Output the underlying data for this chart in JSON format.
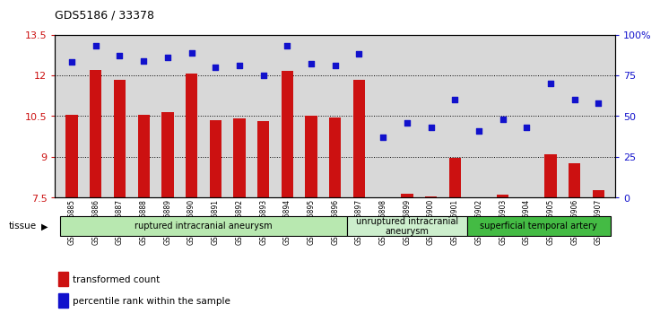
{
  "title": "GDS5186 / 33378",
  "samples": [
    "GSM1306885",
    "GSM1306886",
    "GSM1306887",
    "GSM1306888",
    "GSM1306889",
    "GSM1306890",
    "GSM1306891",
    "GSM1306892",
    "GSM1306893",
    "GSM1306894",
    "GSM1306895",
    "GSM1306896",
    "GSM1306897",
    "GSM1306898",
    "GSM1306899",
    "GSM1306900",
    "GSM1306901",
    "GSM1306902",
    "GSM1306903",
    "GSM1306904",
    "GSM1306905",
    "GSM1306906",
    "GSM1306907"
  ],
  "bar_values": [
    10.55,
    12.2,
    11.85,
    10.55,
    10.65,
    12.05,
    10.35,
    10.4,
    10.3,
    12.15,
    10.5,
    10.45,
    11.85,
    7.52,
    7.65,
    7.55,
    8.95,
    7.52,
    7.62,
    7.52,
    9.1,
    8.75,
    7.78
  ],
  "scatter_values": [
    83,
    93,
    87,
    84,
    86,
    89,
    80,
    81,
    75,
    93,
    82,
    81,
    88,
    37,
    46,
    43,
    60,
    41,
    48,
    43,
    70,
    60,
    58
  ],
  "ylim_left": [
    7.5,
    13.5
  ],
  "ylim_right": [
    0,
    100
  ],
  "yticks_left": [
    7.5,
    9.0,
    10.5,
    12.0,
    13.5
  ],
  "ytick_labels_left": [
    "7.5",
    "9",
    "10.5",
    "12",
    "13.5"
  ],
  "yticks_right": [
    0,
    25,
    50,
    75,
    100
  ],
  "ytick_labels_right": [
    "0",
    "25",
    "50",
    "75",
    "100%"
  ],
  "grid_values": [
    9.0,
    10.5,
    12.0
  ],
  "bar_color": "#cc1111",
  "scatter_color": "#1111cc",
  "plot_bg_color": "#d8d8d8",
  "tick_bg_color": "#d0d0d0",
  "groups": [
    {
      "label": "ruptured intracranial aneurysm",
      "start": 0,
      "end": 12,
      "color": "#b8e8b0"
    },
    {
      "label": "unruptured intracranial\naneurysm",
      "start": 12,
      "end": 17,
      "color": "#cceecc"
    },
    {
      "label": "superficial temporal artery",
      "start": 17,
      "end": 23,
      "color": "#44bb44"
    }
  ],
  "legend_bar_label": "transformed count",
  "legend_scatter_label": "percentile rank within the sample",
  "tissue_label": "tissue"
}
